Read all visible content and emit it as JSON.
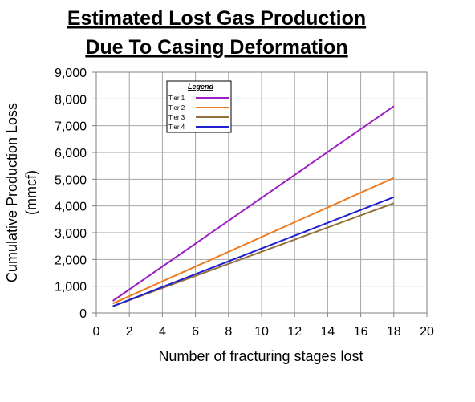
{
  "chart_data": {
    "type": "line",
    "title": [
      "Estimated Lost Gas Production",
      "Due To Casing Deformation"
    ],
    "xlabel": "Number of fracturing stages lost",
    "ylabel": [
      "Cumulative Production Loss",
      "(mmcf)"
    ],
    "xlim": [
      0,
      20
    ],
    "ylim": [
      0,
      9000
    ],
    "xticks": [
      "0",
      "2",
      "4",
      "6",
      "8",
      "10",
      "12",
      "14",
      "16",
      "18",
      "20"
    ],
    "yticks": [
      "0",
      "1,000",
      "2,000",
      "3,000",
      "4,000",
      "5,000",
      "6,000",
      "7,000",
      "8,000",
      "9,000"
    ],
    "grid": true,
    "legend": {
      "title": "Legend",
      "placement": "upper-left inside plot"
    },
    "series": [
      {
        "name": "Tier 1",
        "color": "#9b1fc3",
        "x": [
          1,
          18
        ],
        "y": [
          450,
          7730
        ]
      },
      {
        "name": "Tier 2",
        "color": "#ee7b1f",
        "x": [
          1,
          18
        ],
        "y": [
          350,
          5050
        ]
      },
      {
        "name": "Tier 3",
        "color": "#96703c",
        "x": [
          1,
          18
        ],
        "y": [
          250,
          4100
        ]
      },
      {
        "name": "Tier 4",
        "color": "#1f1fd0",
        "x": [
          1,
          18
        ],
        "y": [
          250,
          4330
        ]
      }
    ]
  }
}
